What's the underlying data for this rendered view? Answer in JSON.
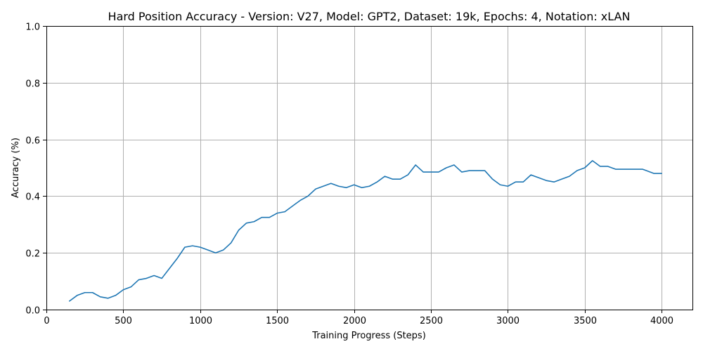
{
  "chart_data": {
    "type": "line",
    "title": "Hard Position Accuracy - Version: V27, Model: GPT2, Dataset: 19k, Epochs: 4, Notation: xLAN",
    "xlabel": "Training Progress (Steps)",
    "ylabel": "Accuracy (%)",
    "xlim": [
      0,
      4200
    ],
    "ylim": [
      0,
      1.0
    ],
    "xticks": [
      0,
      500,
      1000,
      1500,
      2000,
      2500,
      3000,
      3500,
      4000
    ],
    "yticks": [
      0.0,
      0.2,
      0.4,
      0.6,
      0.8,
      1.0
    ],
    "xtick_labels": [
      "0",
      "500",
      "1000",
      "1500",
      "2000",
      "2500",
      "3000",
      "3500",
      "4000"
    ],
    "ytick_labels": [
      "0.0",
      "0.2",
      "0.4",
      "0.6",
      "0.8",
      "1.0"
    ],
    "grid": true,
    "color": "#1f77b4",
    "series": [
      {
        "x": [
          150,
          200,
          250,
          300,
          350,
          400,
          450,
          500,
          550,
          600,
          650,
          700,
          750,
          800,
          850,
          900,
          950,
          1000,
          1050,
          1100,
          1150,
          1200,
          1250,
          1300,
          1350,
          1400,
          1450,
          1500,
          1550,
          1600,
          1650,
          1700,
          1750,
          1800,
          1850,
          1900,
          1950,
          2000,
          2050,
          2100,
          2150,
          2200,
          2250,
          2300,
          2350,
          2400,
          2450,
          2500,
          2550,
          2600,
          2650,
          2700,
          2750,
          2800,
          2850,
          2900,
          2950,
          3000,
          3050,
          3100,
          3150,
          3200,
          3250,
          3300,
          3350,
          3400,
          3450,
          3500,
          3550,
          3600,
          3650,
          3700,
          3750,
          3800,
          3850,
          3875,
          3900,
          3950,
          4000
        ],
        "values": [
          0.03,
          0.05,
          0.06,
          0.06,
          0.045,
          0.04,
          0.05,
          0.07,
          0.08,
          0.105,
          0.11,
          0.12,
          0.11,
          0.145,
          0.18,
          0.22,
          0.225,
          0.22,
          0.21,
          0.2,
          0.21,
          0.235,
          0.28,
          0.305,
          0.31,
          0.325,
          0.325,
          0.34,
          0.345,
          0.365,
          0.385,
          0.4,
          0.425,
          0.435,
          0.445,
          0.435,
          0.43,
          0.44,
          0.43,
          0.435,
          0.45,
          0.47,
          0.46,
          0.46,
          0.475,
          0.51,
          0.485,
          0.485,
          0.485,
          0.5,
          0.51,
          0.485,
          0.49,
          0.49,
          0.49,
          0.46,
          0.44,
          0.435,
          0.45,
          0.45,
          0.475,
          0.465,
          0.455,
          0.45,
          0.46,
          0.47,
          0.49,
          0.5,
          0.525,
          0.505,
          0.505,
          0.495,
          0.495,
          0.495,
          0.495,
          0.495,
          0.49,
          0.48,
          0.48
        ]
      }
    ]
  }
}
